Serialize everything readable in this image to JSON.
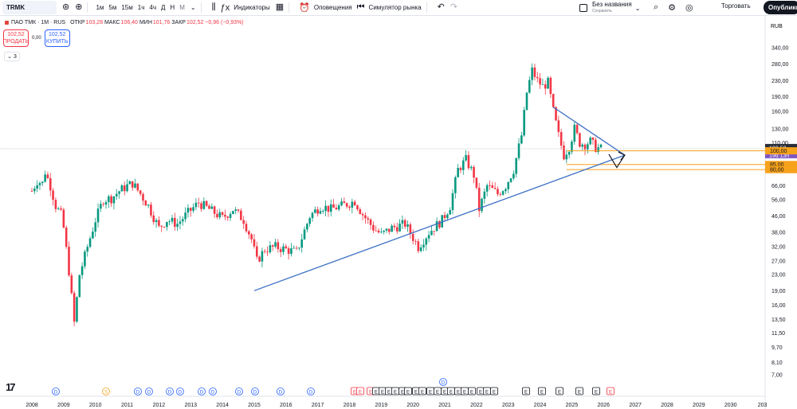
{
  "toolbar": {
    "symbol": "TRMK",
    "intervals": [
      "1м",
      "5м",
      "15м",
      "1ч",
      "4ч",
      "Д",
      "Н",
      "М"
    ],
    "active_interval": "М",
    "indicators_label": "Индикаторы",
    "alerts_label": "Оповещения",
    "replay_label": "Симулятор рынка",
    "layout_name": "Без названия",
    "layout_status": "Сохранить",
    "trade_label": "Торговать",
    "publish_label": "Опубликов"
  },
  "legend": {
    "title": "ПАО ТМК · 1М · RUS",
    "open_k": "ОТКР",
    "open_v": "103,28",
    "high_k": "МАКС",
    "high_v": "106,40",
    "low_k": "МИН",
    "low_v": "101,76",
    "close_k": "ЗАКР",
    "close_v": "102,52 −0,96 (−0,93%)",
    "sell_price": "102,52",
    "sell_label": "ПРОДАТЬ",
    "spread": "0,00",
    "buy_price": "102,52",
    "buy_label": "КУПИТЬ",
    "collapsed_count": "3"
  },
  "colors": {
    "up": "#089981",
    "down": "#f23645",
    "trendline": "#3a6fc4",
    "level": "#f7a21b",
    "current_price": "#2a2e39",
    "countdown": "#7e57c2"
  },
  "chart_data": {
    "type": "candlestick",
    "currency": "RUB",
    "scale": "log",
    "x_axis_labels": [
      "2008",
      "2009",
      "2010",
      "2011",
      "2012",
      "2013",
      "2014",
      "2015",
      "2016",
      "2017",
      "2018",
      "2019",
      "2020",
      "2021",
      "2022",
      "2023",
      "2024",
      "2025",
      "2026",
      "2027",
      "2028",
      "2029",
      "2030",
      "203"
    ],
    "y_axis_labels": [
      "340,00",
      "280,00",
      "230,00",
      "190,00",
      "160,00",
      "130,00",
      "110,00",
      "100,00",
      "85,00",
      "80,00",
      "66,00",
      "56,00",
      "46,00",
      "38,00",
      "32,00",
      "27,00",
      "23,00",
      "19,00",
      "16,00",
      "13,50",
      "11,50",
      "9,70",
      "8,10",
      "7,00"
    ],
    "price_tags": [
      {
        "label": "102,52",
        "sub": "19d 13h",
        "type": "current"
      },
      {
        "label": "100,00",
        "type": "level"
      },
      {
        "label": "85,00",
        "type": "level"
      },
      {
        "label": "80,00",
        "type": "level"
      }
    ],
    "monthly_close_points": [
      {
        "x": "2008-01",
        "y": 62
      },
      {
        "x": "2008-03",
        "y": 70
      },
      {
        "x": "2008-05",
        "y": 68
      },
      {
        "x": "2008-06",
        "y": 78
      },
      {
        "x": "2008-08",
        "y": 66
      },
      {
        "x": "2008-10",
        "y": 52
      },
      {
        "x": "2008-12",
        "y": 47
      },
      {
        "x": "2009-01",
        "y": 40
      },
      {
        "x": "2009-03",
        "y": 24
      },
      {
        "x": "2009-05",
        "y": 13
      },
      {
        "x": "2009-07",
        "y": 23
      },
      {
        "x": "2009-10",
        "y": 32
      },
      {
        "x": "2010-01",
        "y": 44
      },
      {
        "x": "2010-04",
        "y": 56
      },
      {
        "x": "2010-07",
        "y": 57
      },
      {
        "x": "2010-10",
        "y": 62
      },
      {
        "x": "2011-01",
        "y": 66
      },
      {
        "x": "2011-03",
        "y": 68
      },
      {
        "x": "2011-06",
        "y": 60
      },
      {
        "x": "2011-09",
        "y": 52
      },
      {
        "x": "2012-01",
        "y": 40
      },
      {
        "x": "2012-04",
        "y": 44
      },
      {
        "x": "2012-08",
        "y": 42
      },
      {
        "x": "2012-12",
        "y": 48
      },
      {
        "x": "2013-04",
        "y": 54
      },
      {
        "x": "2013-08",
        "y": 50
      },
      {
        "x": "2014-01",
        "y": 45
      },
      {
        "x": "2014-05",
        "y": 50
      },
      {
        "x": "2014-09",
        "y": 44
      },
      {
        "x": "2014-12",
        "y": 35
      },
      {
        "x": "2015-02",
        "y": 27
      },
      {
        "x": "2015-05",
        "y": 31
      },
      {
        "x": "2015-09",
        "y": 32
      },
      {
        "x": "2016-01",
        "y": 31
      },
      {
        "x": "2016-05",
        "y": 30
      },
      {
        "x": "2016-10",
        "y": 46
      },
      {
        "x": "2017-02",
        "y": 52
      },
      {
        "x": "2017-06",
        "y": 50
      },
      {
        "x": "2017-10",
        "y": 52
      },
      {
        "x": "2018-03",
        "y": 55
      },
      {
        "x": "2018-06",
        "y": 47
      },
      {
        "x": "2018-10",
        "y": 40
      },
      {
        "x": "2019-01",
        "y": 37
      },
      {
        "x": "2019-05",
        "y": 40
      },
      {
        "x": "2019-10",
        "y": 42
      },
      {
        "x": "2020-03",
        "y": 32
      },
      {
        "x": "2020-07",
        "y": 38
      },
      {
        "x": "2020-12",
        "y": 44
      },
      {
        "x": "2021-03",
        "y": 52
      },
      {
        "x": "2021-06",
        "y": 80
      },
      {
        "x": "2021-09",
        "y": 90
      },
      {
        "x": "2021-12",
        "y": 75
      },
      {
        "x": "2022-02",
        "y": 50
      },
      {
        "x": "2022-05",
        "y": 66
      },
      {
        "x": "2022-09",
        "y": 60
      },
      {
        "x": "2022-12",
        "y": 66
      },
      {
        "x": "2023-03",
        "y": 80
      },
      {
        "x": "2023-06",
        "y": 120
      },
      {
        "x": "2023-08",
        "y": 200
      },
      {
        "x": "2023-10",
        "y": 260
      },
      {
        "x": "2023-12",
        "y": 230
      },
      {
        "x": "2024-02",
        "y": 215
      },
      {
        "x": "2024-04",
        "y": 225
      },
      {
        "x": "2024-06",
        "y": 160
      },
      {
        "x": "2024-08",
        "y": 120
      },
      {
        "x": "2024-10",
        "y": 95
      },
      {
        "x": "2024-12",
        "y": 105
      },
      {
        "x": "2025-02",
        "y": 130
      },
      {
        "x": "2025-04",
        "y": 110
      },
      {
        "x": "2025-06",
        "y": 108
      },
      {
        "x": "2025-08",
        "y": 112
      },
      {
        "x": "2025-10",
        "y": 104
      },
      {
        "x": "2025-12",
        "y": 102.52
      }
    ],
    "drawings": [
      {
        "type": "trendline",
        "from": {
          "x": "2015-01",
          "y": 19
        },
        "to": {
          "x": "2026-09",
          "y": 95
        }
      },
      {
        "type": "trendline",
        "from": {
          "x": "2024-06",
          "y": 168
        },
        "to": {
          "x": "2026-09",
          "y": 95
        }
      },
      {
        "type": "arrow-path",
        "points": [
          {
            "x": "2026-03",
            "y": 96
          },
          {
            "x": "2026-06",
            "y": 82
          },
          {
            "x": "2026-09",
            "y": 95
          }
        ]
      }
    ],
    "event_markers": [
      "D",
      "S",
      "D",
      "D",
      "D",
      "D",
      "D",
      "D",
      "D",
      "D",
      "E",
      "E",
      "E",
      "E",
      "E",
      "E",
      "E",
      "E",
      "E",
      "E",
      "E",
      "E",
      "E",
      "E",
      "E",
      "E",
      "E",
      "E",
      "E",
      "E",
      "E",
      "D"
    ]
  }
}
